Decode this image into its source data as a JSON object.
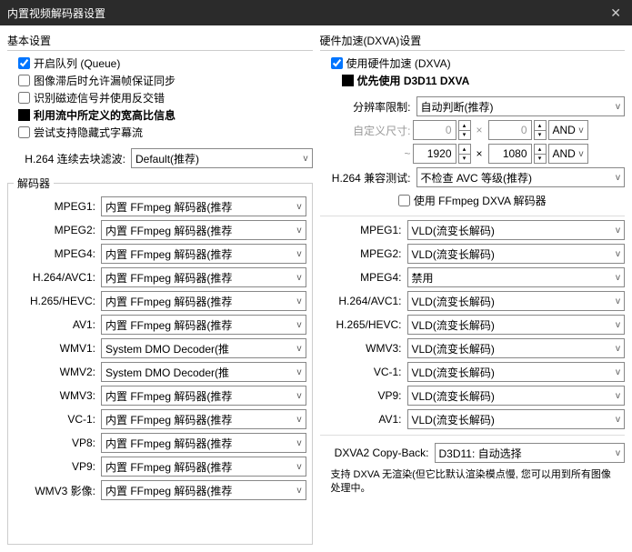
{
  "titlebar": {
    "title": "内置视频解码器设置"
  },
  "basic": {
    "title": "基本设置",
    "queue": "开启队列 (Queue)",
    "dropframe": "图像滞后时允许漏帧保证同步",
    "trace": "识别磁迹信号并使用反交错",
    "aspect": "利用流中所定义的宽高比信息",
    "hidden_sub": "尝试支持隐藏式字幕流",
    "h264_deblock_label": "H.264 连续去块滤波:",
    "h264_deblock_value": "Default(推荐)"
  },
  "decoders": {
    "title": "解码器",
    "default_ffmpeg": "内置 FFmpeg 解码器(推荐",
    "system_dmo": "System DMO Decoder(推",
    "items": [
      {
        "label": "MPEG1:",
        "value": "内置 FFmpeg 解码器(推荐"
      },
      {
        "label": "MPEG2:",
        "value": "内置 FFmpeg 解码器(推荐"
      },
      {
        "label": "MPEG4:",
        "value": "内置 FFmpeg 解码器(推荐"
      },
      {
        "label": "H.264/AVC1:",
        "value": "内置 FFmpeg 解码器(推荐"
      },
      {
        "label": "H.265/HEVC:",
        "value": "内置 FFmpeg 解码器(推荐"
      },
      {
        "label": "AV1:",
        "value": "内置 FFmpeg 解码器(推荐"
      },
      {
        "label": "WMV1:",
        "value": "System DMO Decoder(推"
      },
      {
        "label": "WMV2:",
        "value": "System DMO Decoder(推"
      },
      {
        "label": "WMV3:",
        "value": "内置 FFmpeg 解码器(推荐"
      },
      {
        "label": "VC-1:",
        "value": "内置 FFmpeg 解码器(推荐"
      },
      {
        "label": "VP8:",
        "value": "内置 FFmpeg 解码器(推荐"
      },
      {
        "label": "VP9:",
        "value": "内置 FFmpeg 解码器(推荐"
      },
      {
        "label": "WMV3 影像:",
        "value": "内置 FFmpeg 解码器(推荐"
      }
    ]
  },
  "hw": {
    "title": "硬件加速(DXVA)设置",
    "use_hw": "使用硬件加速 (DXVA)",
    "prefer_d3d11": "优先使用 D3D11 DXVA",
    "res_limit_label": "分辨率限制:",
    "res_limit_value": "自动判断(推荐)",
    "custom_size_label": "自定义尺寸:",
    "w1": "0",
    "h1": "0",
    "and1": "AND",
    "w2": "1920",
    "h2": "1080",
    "and2": "AND",
    "tilde": "~",
    "compat_label": "H.264 兼容测试:",
    "compat_value": "不检查 AVC 等级(推荐)",
    "use_ffmpeg_dxva": "使用 FFmpeg DXVA 解码器",
    "codecs": [
      {
        "label": "MPEG1:",
        "value": "VLD(流变长解码)"
      },
      {
        "label": "MPEG2:",
        "value": "VLD(流变长解码)"
      },
      {
        "label": "MPEG4:",
        "value": "禁用"
      },
      {
        "label": "H.264/AVC1:",
        "value": "VLD(流变长解码)"
      },
      {
        "label": "H.265/HEVC:",
        "value": "VLD(流变长解码)"
      },
      {
        "label": "WMV3:",
        "value": "VLD(流变长解码)"
      },
      {
        "label": "VC-1:",
        "value": "VLD(流变长解码)"
      },
      {
        "label": "VP9:",
        "value": "VLD(流变长解码)"
      },
      {
        "label": "AV1:",
        "value": "VLD(流变长解码)"
      }
    ],
    "copyback_label": "DXVA2 Copy-Back:",
    "copyback_value": "D3D11: 自动选择",
    "footnote": "支持 DXVA 无渲染(但它比默认渲染模点慢, 您可以用到所有图像处理中。"
  }
}
